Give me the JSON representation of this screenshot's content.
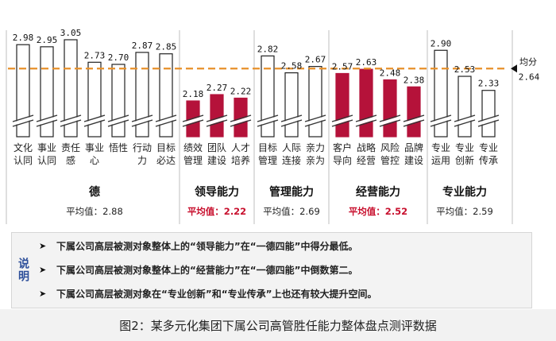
{
  "chart_data": {
    "type": "bar",
    "ylim": [
      2.0,
      3.2
    ],
    "reference": {
      "value": 2.64,
      "label_top": "均分",
      "label_value": "2.64"
    },
    "groups": [
      {
        "name": "德",
        "avg_text": "平均值：2.88",
        "highlight": false,
        "bars": [
          {
            "label": [
              "文化",
              "认同"
            ],
            "value": 2.98,
            "value_text": "2.98"
          },
          {
            "label": [
              "事业",
              "认同"
            ],
            "value": 2.95,
            "value_text": "2.95"
          },
          {
            "label": [
              "责任",
              "感"
            ],
            "value": 3.05,
            "value_text": "3.05"
          },
          {
            "label": [
              "事业",
              "心"
            ],
            "value": 2.73,
            "value_text": "2.73"
          },
          {
            "label": [
              "悟性"
            ],
            "value": 2.7,
            "value_text": "2.70"
          },
          {
            "label": [
              "行动",
              "力"
            ],
            "value": 2.87,
            "value_text": "2.87"
          },
          {
            "label": [
              "目标",
              "必达"
            ],
            "value": 2.85,
            "value_text": "2.85"
          }
        ]
      },
      {
        "name": "领导能力",
        "avg_text": "平均值：2.22",
        "highlight": true,
        "bars": [
          {
            "label": [
              "绩效",
              "管理"
            ],
            "value": 2.18,
            "value_text": "2.18"
          },
          {
            "label": [
              "团队",
              "建设"
            ],
            "value": 2.27,
            "value_text": "2.27"
          },
          {
            "label": [
              "人才",
              "培养"
            ],
            "value": 2.22,
            "value_text": "2.22"
          }
        ]
      },
      {
        "name": "管理能力",
        "avg_text": "平均值：2.69",
        "highlight": false,
        "bars": [
          {
            "label": [
              "目标",
              "管理"
            ],
            "value": 2.82,
            "value_text": "2.82"
          },
          {
            "label": [
              "人际",
              "连接"
            ],
            "value": 2.58,
            "value_text": "2.58"
          },
          {
            "label": [
              "亲力",
              "亲为"
            ],
            "value": 2.67,
            "value_text": "2.67"
          }
        ]
      },
      {
        "name": "经营能力",
        "avg_text": "平均值：2.52",
        "highlight": true,
        "bars": [
          {
            "label": [
              "客户",
              "导向"
            ],
            "value": 2.57,
            "value_text": "2.57"
          },
          {
            "label": [
              "战略",
              "经营"
            ],
            "value": 2.63,
            "value_text": "2.63"
          },
          {
            "label": [
              "风险",
              "管控"
            ],
            "value": 2.48,
            "value_text": "2.48"
          },
          {
            "label": [
              "品牌",
              "建设"
            ],
            "value": 2.38,
            "value_text": "2.38"
          }
        ]
      },
      {
        "name": "专业能力",
        "avg_text": "平均值：2.59",
        "highlight": false,
        "bars": [
          {
            "label": [
              "专业",
              "运用"
            ],
            "value": 2.9,
            "value_text": "2.90"
          },
          {
            "label": [
              "专业",
              "创新"
            ],
            "value": 2.53,
            "value_text": "2.53"
          },
          {
            "label": [
              "专业",
              "传承"
            ],
            "value": 2.33,
            "value_text": "2.33"
          }
        ]
      }
    ]
  },
  "notes": {
    "label": "说明",
    "items": [
      "下属公司高层被测对象整体上的“领导能力”在“一德四能”中得分最低。",
      "下属公司高层被测对象整体上的“经营能力”在“一德四能”中倒数第二。",
      "下属公司高层被测对象在“专业创新”和“专业传承”上也还有较大提升空间。"
    ]
  },
  "caption": "图2：某多元化集团下属公司高管胜任能力整体盘点测评数据",
  "colors": {
    "highlight_bar": "#b5123a",
    "normal_bar": "#ffffff",
    "bar_stroke": "#222222",
    "reference_line": "#e8902a",
    "highlight_text": "#c8102e",
    "note_label": "#2d4f9a"
  }
}
